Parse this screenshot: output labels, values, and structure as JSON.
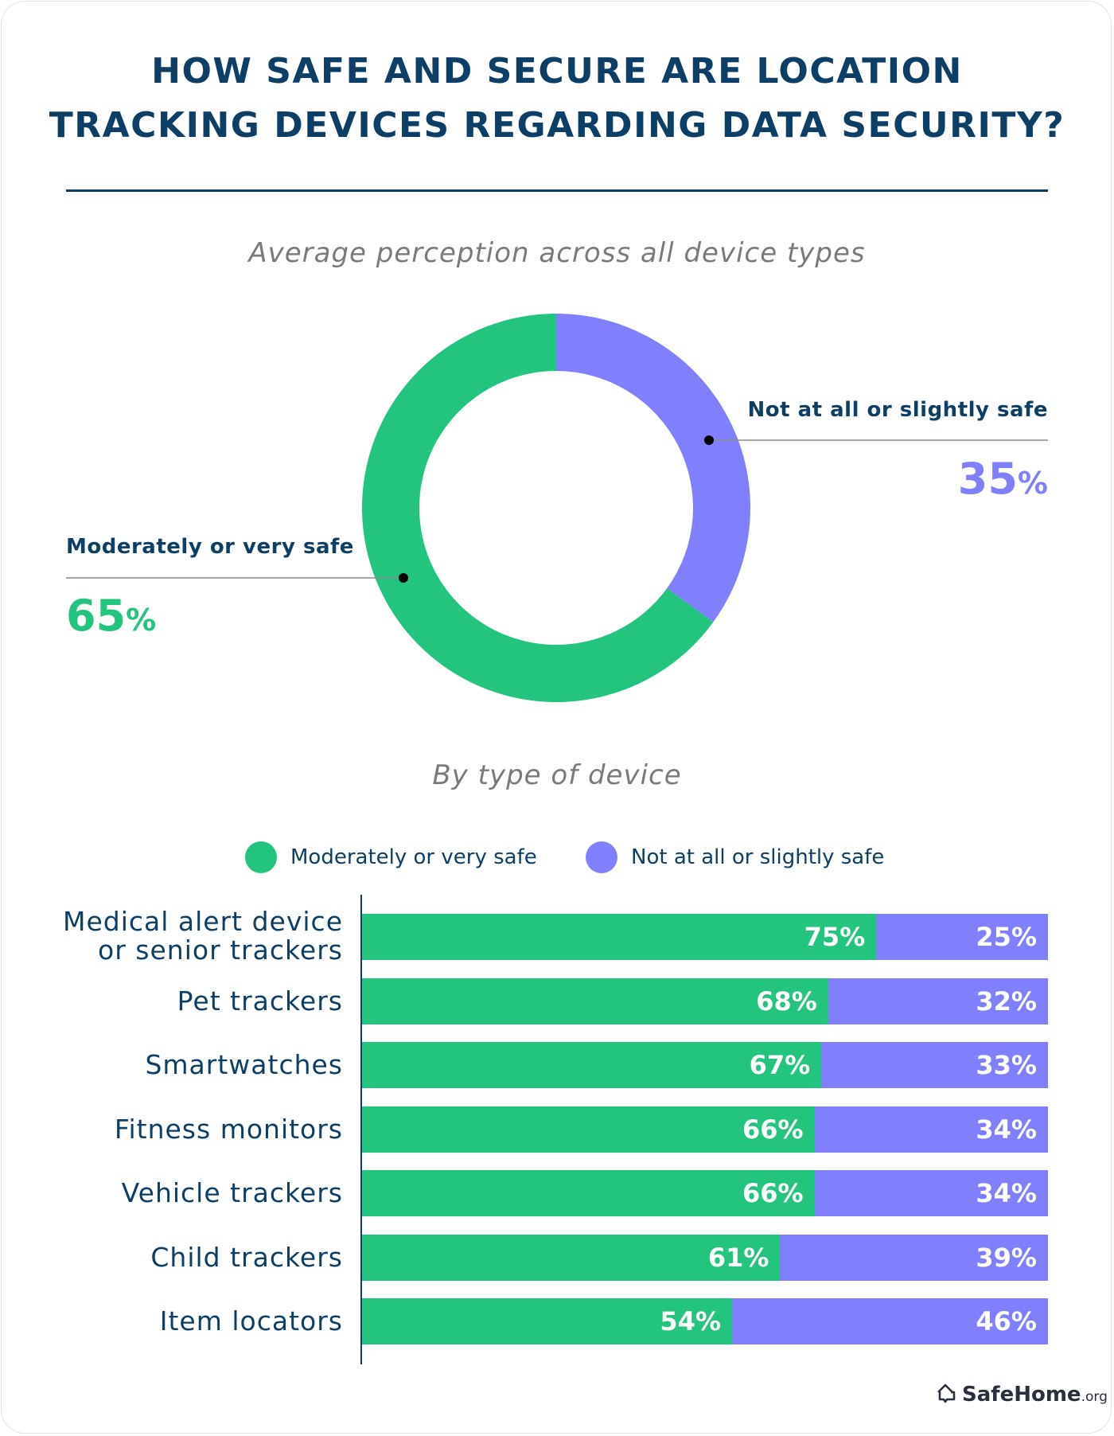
{
  "title_lines": [
    "HOW SAFE AND SECURE ARE LOCATION",
    "TRACKING DEVICES REGARDING DATA SECURITY?"
  ],
  "colors": {
    "safe": "#23c47e",
    "unsafe": "#8080ff",
    "navy": "#0d3f66"
  },
  "chart_data": [
    {
      "type": "pie",
      "subtitle": "Average perception across all device types",
      "donut": true,
      "slices": [
        {
          "name": "Not at all or slightly safe",
          "value": 35,
          "label": "35%"
        },
        {
          "name": "Moderately or very safe",
          "value": 65,
          "label": "65%"
        }
      ]
    },
    {
      "type": "bar",
      "stacked": true,
      "orientation": "horizontal",
      "subtitle": "By type of device",
      "legend": [
        "Moderately or very safe",
        "Not at all or slightly safe"
      ],
      "legend_placement": "top",
      "categories": [
        "Medical alert device\nor senior trackers",
        "Pet trackers",
        "Smartwatches",
        "Fitness monitors",
        "Vehicle trackers",
        "Child trackers",
        "Item locators"
      ],
      "series": [
        {
          "name": "Moderately or very safe",
          "values": [
            75,
            68,
            67,
            66,
            66,
            61,
            54
          ],
          "labels": [
            "75%",
            "68%",
            "67%",
            "66%",
            "66%",
            "61%",
            "54%"
          ]
        },
        {
          "name": "Not at all or slightly safe",
          "values": [
            25,
            32,
            33,
            34,
            34,
            39,
            46
          ],
          "labels": [
            "25%",
            "32%",
            "33%",
            "34%",
            "34%",
            "39%",
            "46%"
          ]
        }
      ],
      "xlim": [
        0,
        100
      ]
    }
  ],
  "logo": {
    "name": "SafeHome",
    "suffix": ".org",
    "icon": "house-icon"
  }
}
